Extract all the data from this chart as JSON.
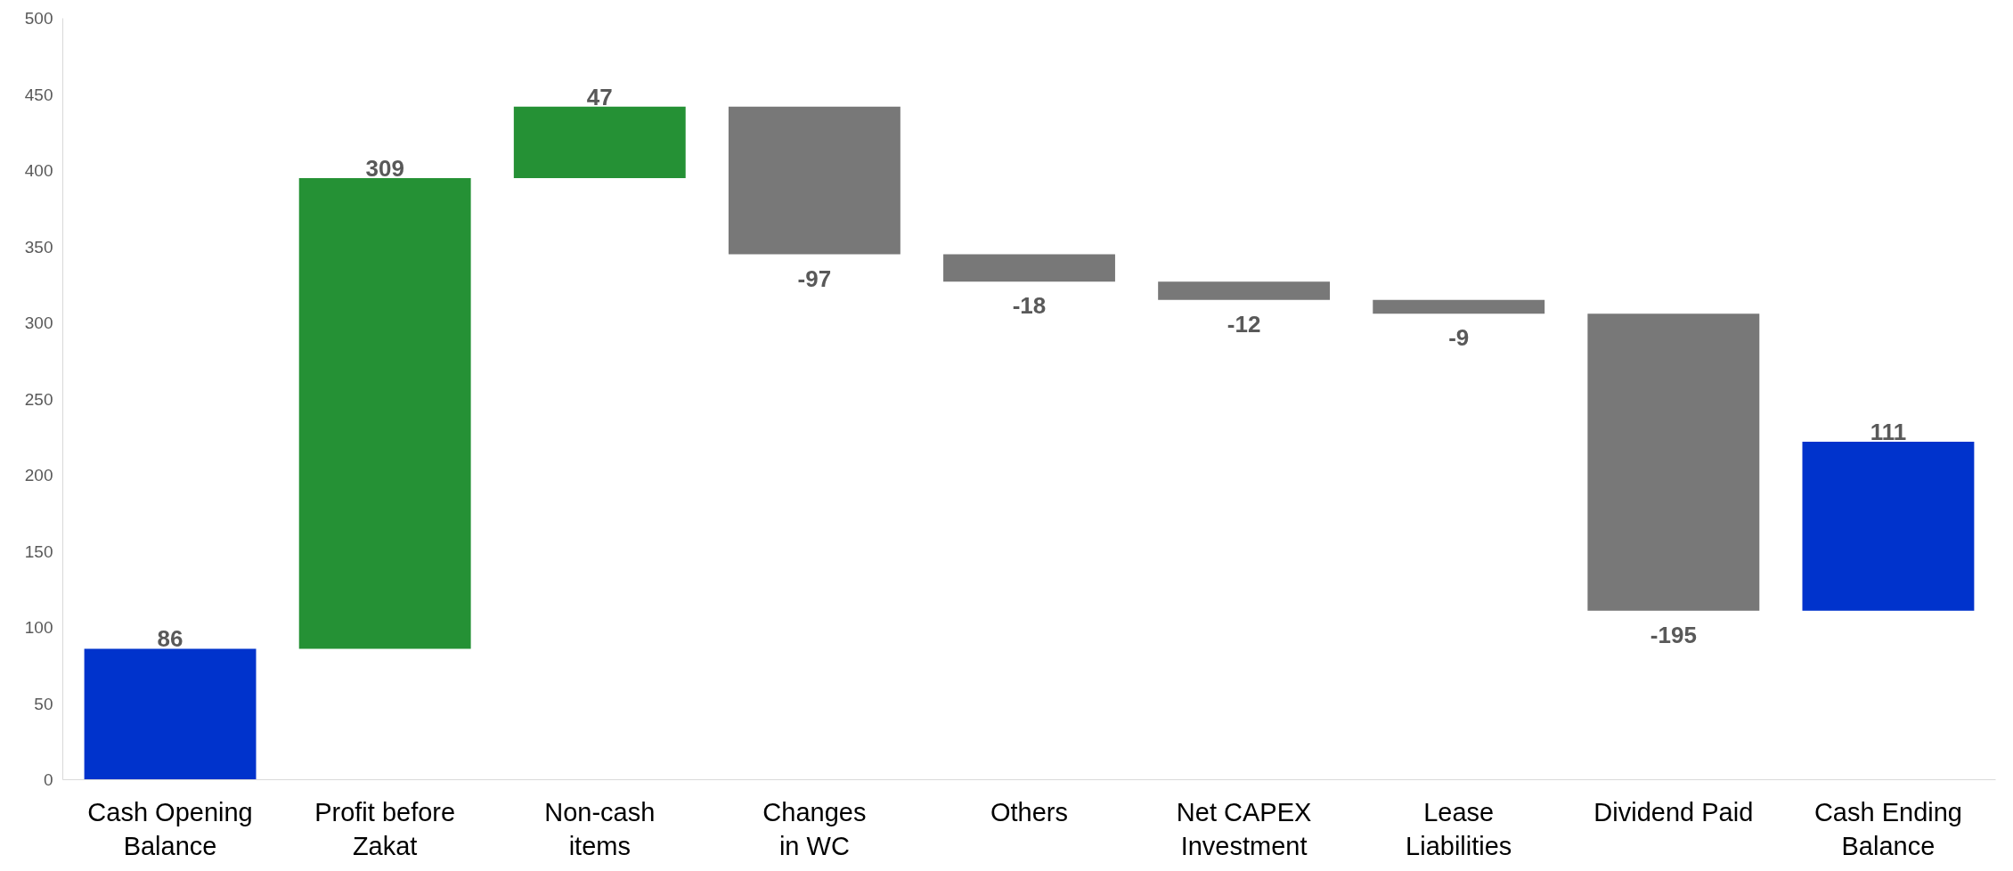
{
  "chart_data": {
    "type": "bar",
    "categories": [
      "Cash Opening\nBalance",
      "Profit before\nZakat",
      "Non-cash\nitems",
      "Changes\nin WC",
      "Others",
      "Net CAPEX\nInvestment",
      "Lease\nLiabilities",
      "Dividend Paid",
      "Cash Ending\nBalance"
    ],
    "values": [
      86,
      309,
      47,
      -97,
      -18,
      -12,
      -9,
      -195,
      111
    ],
    "base": [
      0,
      86,
      395,
      442,
      345,
      327,
      315,
      306,
      111
    ],
    "colors": [
      "#0033cc",
      "#259135",
      "#259135",
      "#787878",
      "#787878",
      "#787878",
      "#787878",
      "#787878",
      "#0033cc"
    ],
    "ylim": [
      0,
      500
    ],
    "yticks": [
      0,
      50,
      100,
      150,
      200,
      250,
      300,
      350,
      400,
      450,
      500
    ],
    "data_labels": true,
    "grid": false
  }
}
